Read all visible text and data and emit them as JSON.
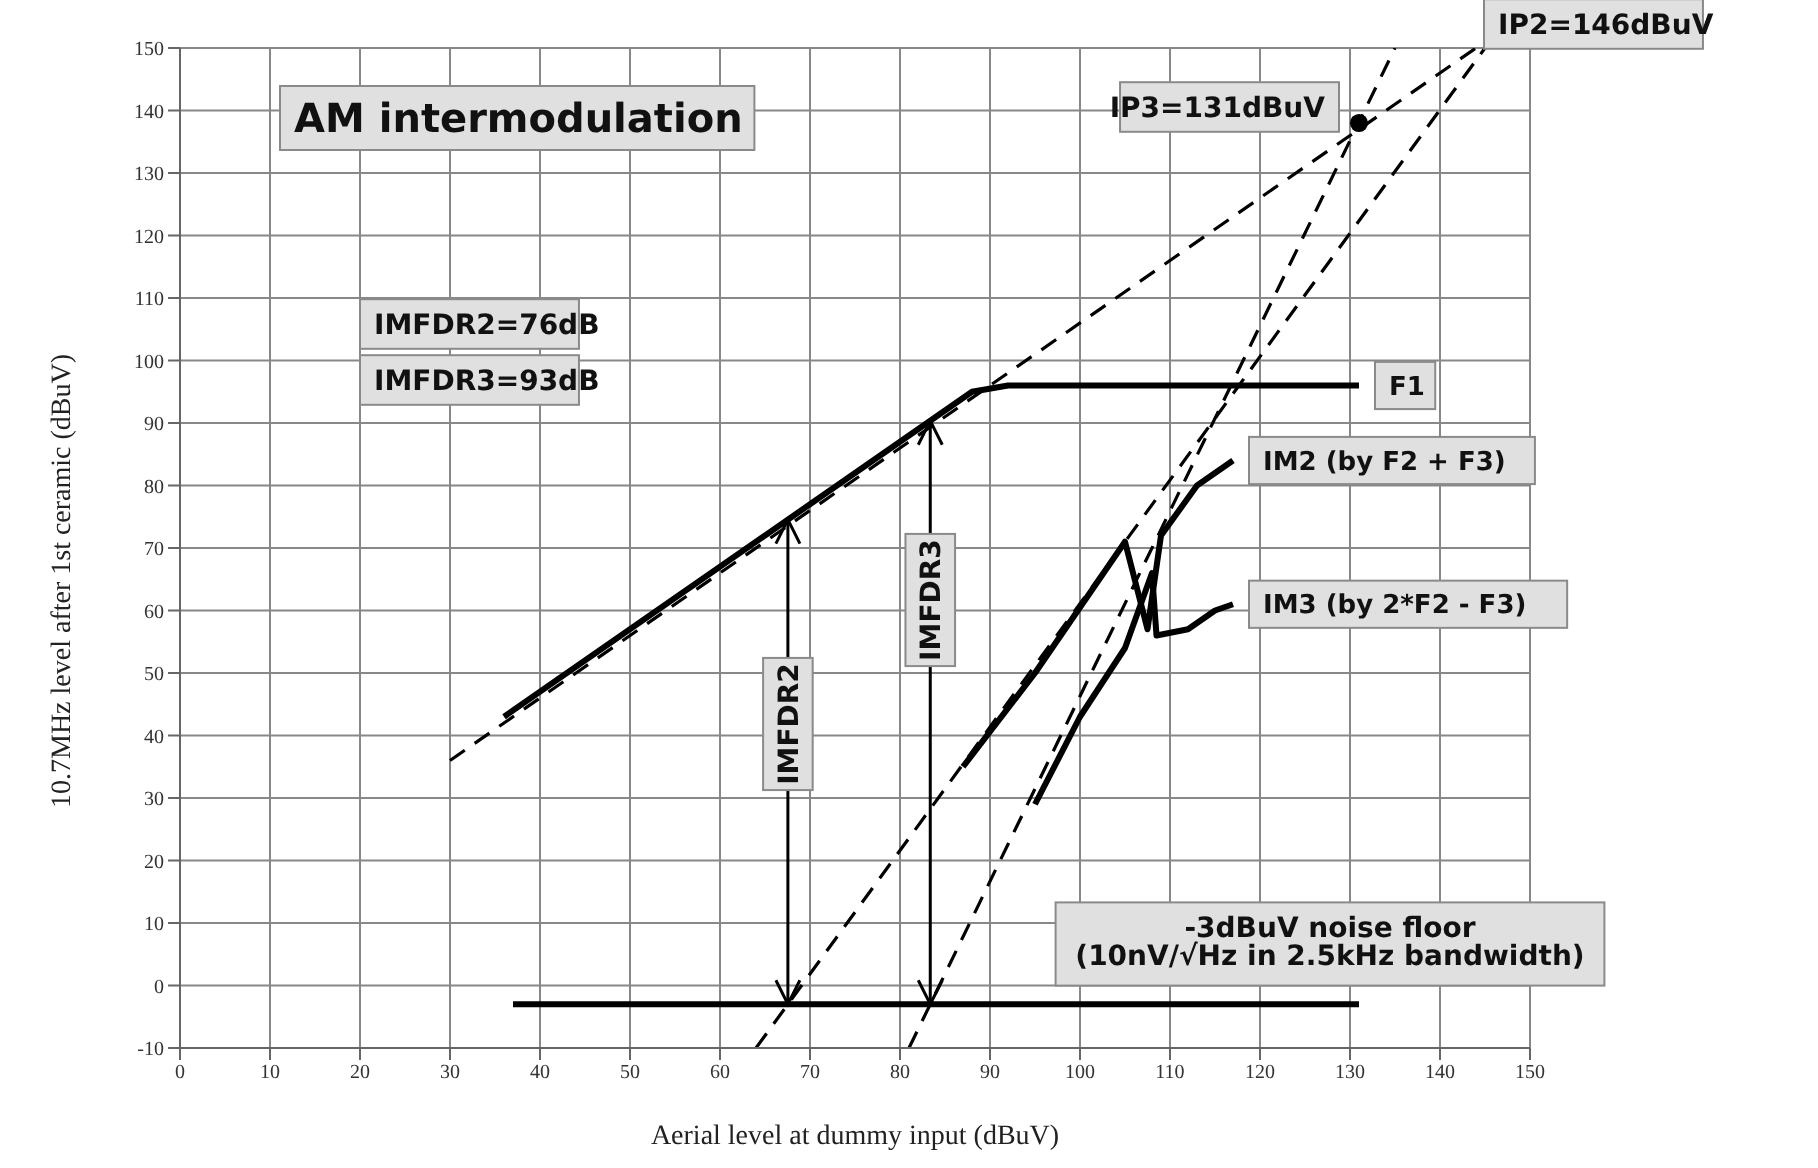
{
  "chart_data": {
    "type": "line",
    "title": "AM intermodulation",
    "xlabel": "Aerial level at dummy input (dBuV)",
    "ylabel": "10.7MHz level after 1st ceramic (dBuV)",
    "xlim": [
      0,
      150
    ],
    "xticks": [
      0,
      10,
      20,
      30,
      40,
      50,
      60,
      70,
      80,
      90,
      100,
      110,
      120,
      130,
      140,
      150
    ],
    "ylim": [
      -10,
      150
    ],
    "yticks": [
      -10,
      0,
      10,
      20,
      30,
      40,
      50,
      60,
      70,
      80,
      90,
      100,
      110,
      120,
      130,
      140,
      150
    ],
    "grid": true,
    "line_style": "solid",
    "series": [
      {
        "name": "F1",
        "color": "#000000",
        "x": [
          36,
          84,
          88,
          92,
          131
        ],
        "values": [
          43,
          91,
          95,
          96,
          96
        ]
      },
      {
        "name": "IM2 (by F2 + F3)",
        "color": "#000000",
        "x": [
          87,
          95,
          105,
          107.5,
          109,
          113,
          117
        ],
        "values": [
          35,
          50,
          71,
          57,
          72,
          80,
          84
        ]
      },
      {
        "name": "IM3 (by 2*F2 - F3)",
        "color": "#000000",
        "x": [
          95,
          100,
          105,
          108,
          108.5,
          112,
          115,
          117
        ],
        "values": [
          29,
          43,
          54,
          66,
          56,
          57,
          60,
          61
        ]
      },
      {
        "color": "#000000",
        "line_style": "dashed",
        "x": [
          30,
          144
        ],
        "values": [
          36,
          150
        ]
      },
      {
        "color": "#000000",
        "line_style": "dashed",
        "x": [
          64,
          145
        ],
        "values": [
          -10,
          150
        ]
      },
      {
        "color": "#000000",
        "line_style": "dashed",
        "x": [
          81,
          135
        ],
        "values": [
          -10,
          150
        ]
      },
      {
        "color": "#000000",
        "x": [
          37,
          131
        ],
        "values": [
          -3,
          -3
        ]
      },
      {
        "type": "scatter",
        "color": "#000000",
        "x": [
          131
        ],
        "values": [
          138
        ]
      }
    ],
    "annotations": [
      "IMFDR2=76dB",
      "IMFDR3=93dB",
      {
        "text": "IP3=131dBuV",
        "x": 131,
        "y": 138
      },
      "IP2=146dBuV",
      "-3dBuV noise floor\n(10nV/√Hz in 2.5kHz bandwidth)",
      "IMFDR2",
      "IMFDR3"
    ]
  }
}
